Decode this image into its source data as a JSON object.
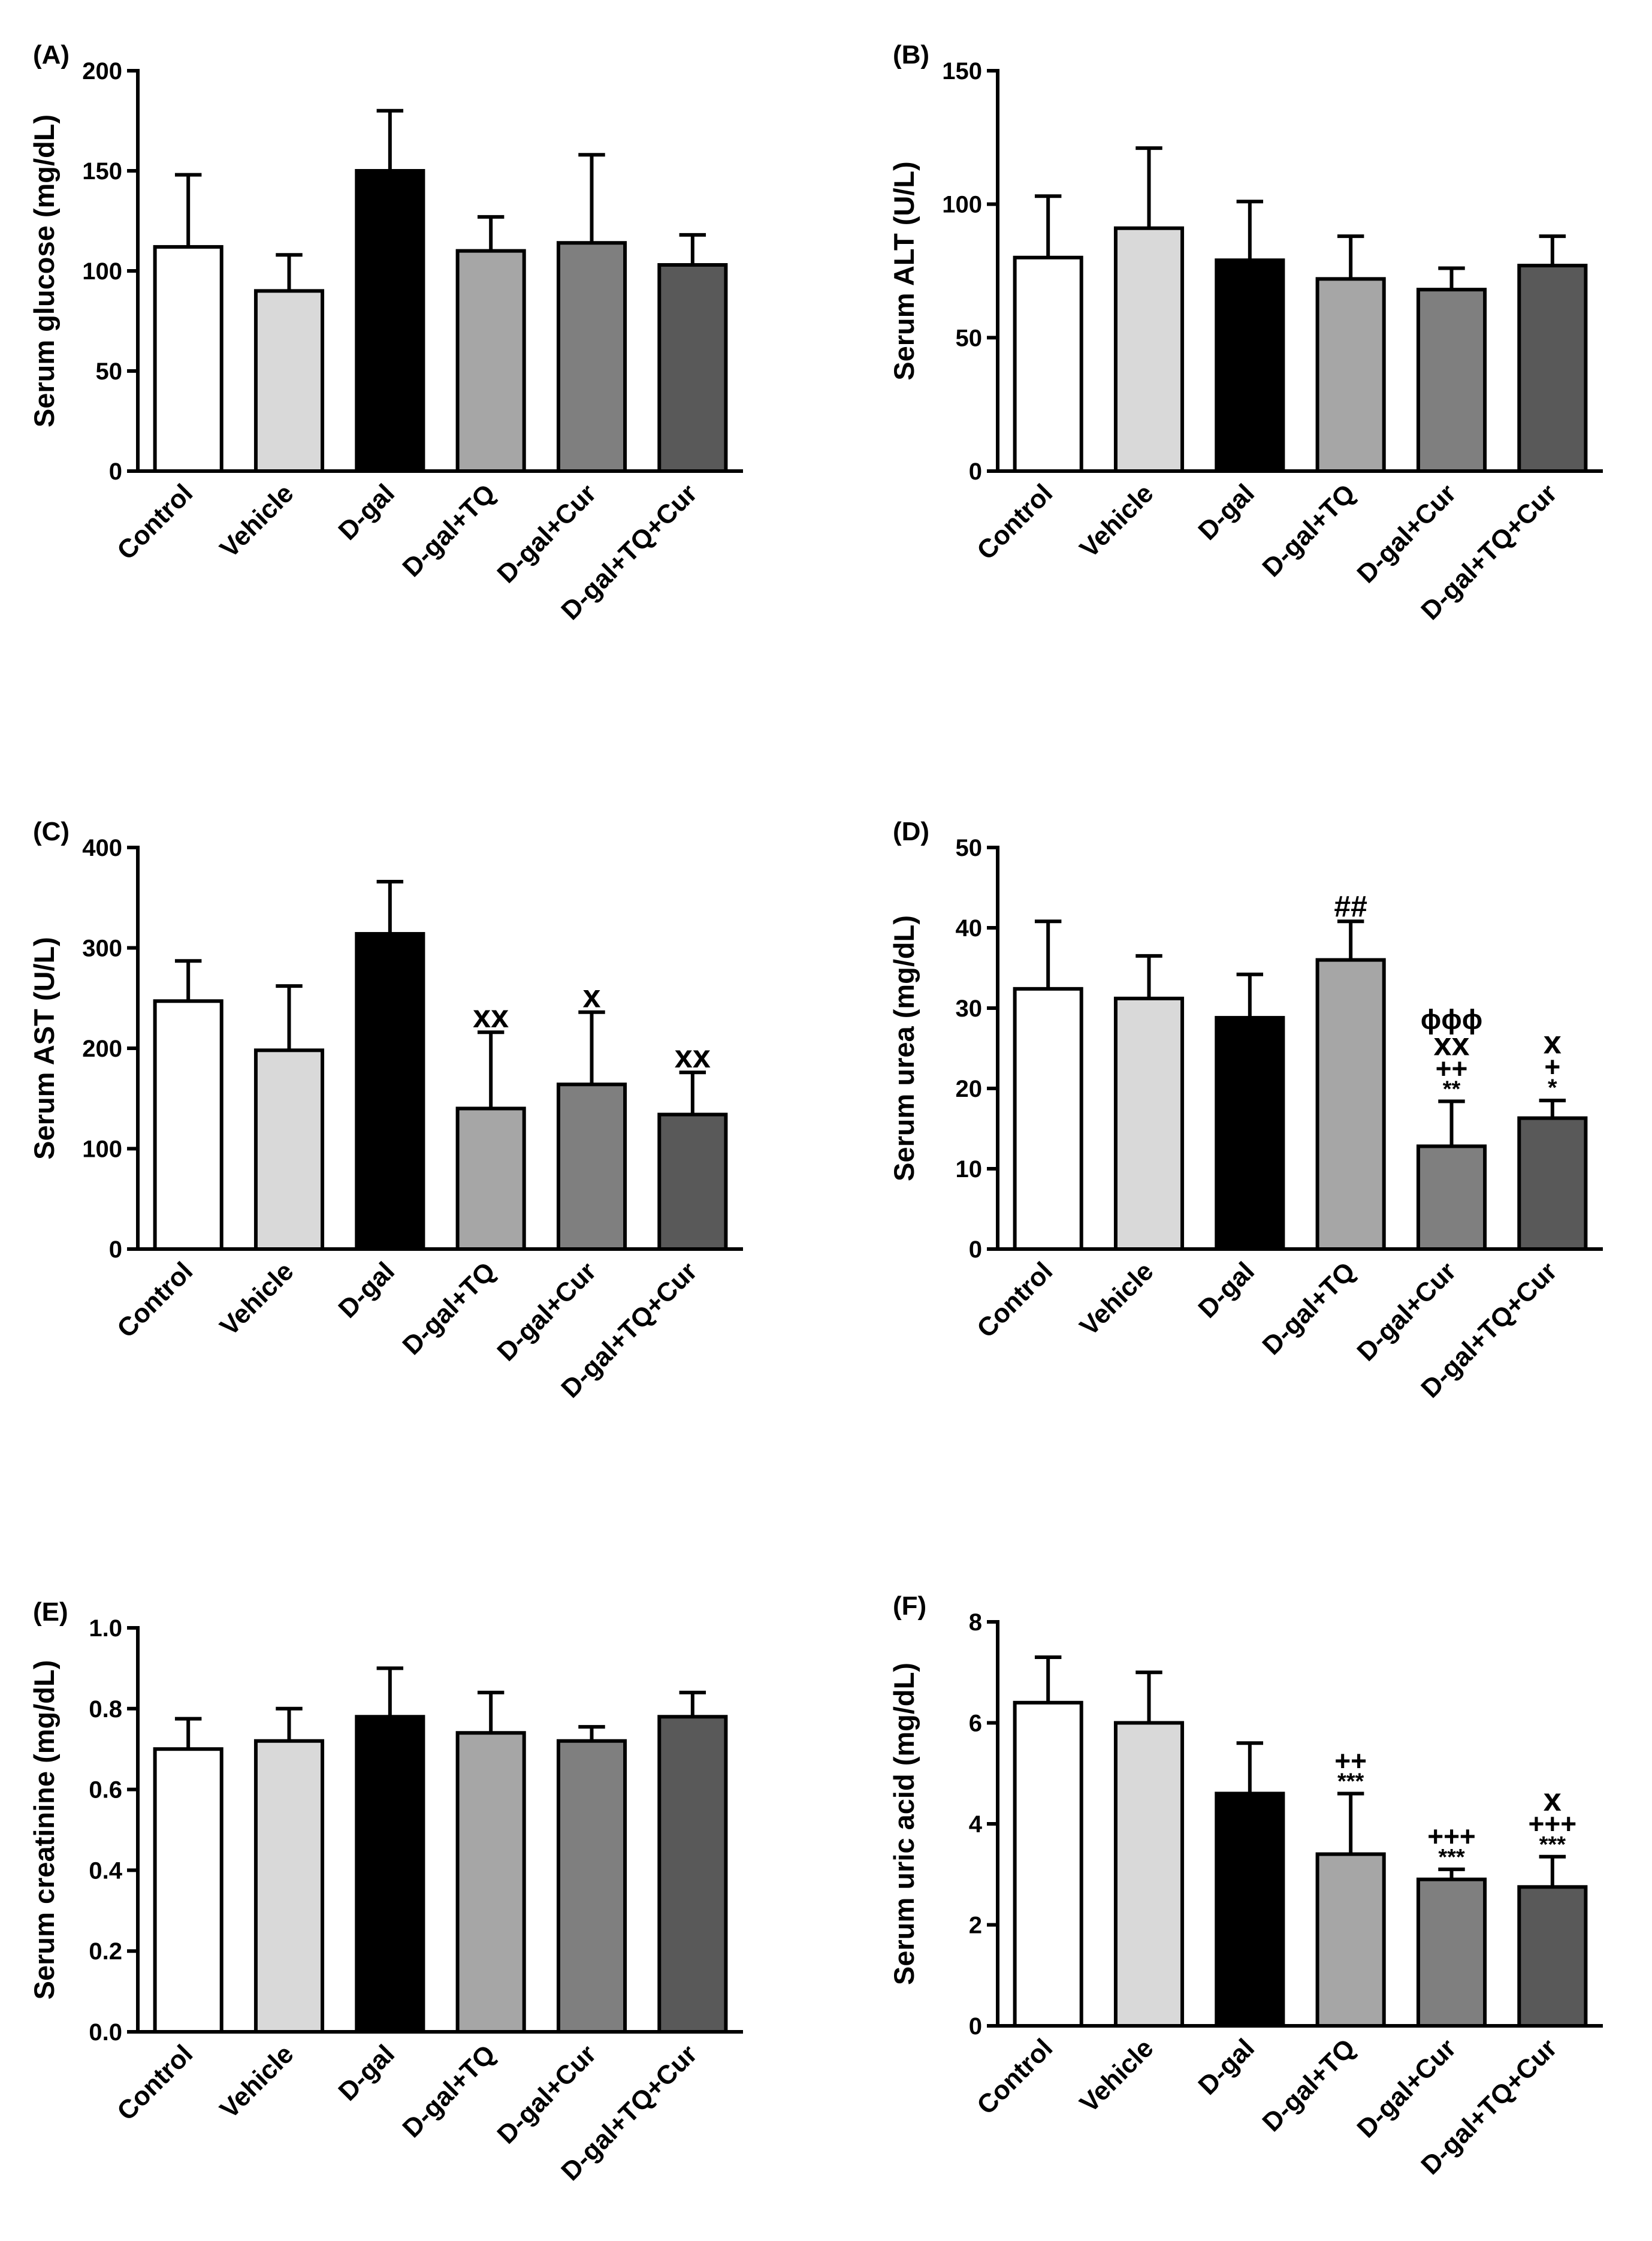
{
  "chart_data": [
    {
      "panel": "(A)",
      "type": "bar",
      "ylabel": "Serum glucose (mg/dL)",
      "ylim": [
        0,
        200
      ],
      "yticks": [
        0,
        50,
        100,
        150,
        200
      ],
      "ytick_labels": [
        "0",
        "50",
        "100",
        "150",
        "200"
      ],
      "categories": [
        "Control",
        "Vehicle",
        "D-gal",
        "D-gal+TQ",
        "D-gal+Cur",
        "D-gal+TQ+Cur"
      ],
      "values": [
        112,
        90,
        150,
        110,
        114,
        103
      ],
      "errors": [
        36,
        18,
        30,
        17,
        44,
        15
      ],
      "annotations": [
        [],
        [],
        [],
        [],
        [],
        []
      ]
    },
    {
      "panel": "(B)",
      "type": "bar",
      "ylabel": "Serum ALT (U/L)",
      "ylim": [
        0,
        150
      ],
      "yticks": [
        0,
        50,
        100,
        150
      ],
      "ytick_labels": [
        "0",
        "50",
        "100",
        "150"
      ],
      "categories": [
        "Control",
        "Vehicle",
        "D-gal",
        "D-gal+TQ",
        "D-gal+Cur",
        "D-gal+TQ+Cur"
      ],
      "values": [
        80,
        91,
        79,
        72,
        68,
        77
      ],
      "errors": [
        23,
        30,
        22,
        16,
        8,
        11
      ],
      "annotations": [
        [],
        [],
        [],
        [],
        [],
        []
      ]
    },
    {
      "panel": "(C)",
      "type": "bar",
      "ylabel": "Serum AST (U/L)",
      "ylim": [
        0,
        400
      ],
      "yticks": [
        0,
        100,
        200,
        300,
        400
      ],
      "ytick_labels": [
        "0",
        "100",
        "200",
        "300",
        "400"
      ],
      "categories": [
        "Control",
        "Vehicle",
        "D-gal",
        "D-gal+TQ",
        "D-gal+Cur",
        "D-gal+TQ+Cur"
      ],
      "values": [
        247,
        198,
        314,
        140,
        164,
        134
      ],
      "errors": [
        40,
        64,
        52,
        76,
        72,
        42
      ],
      "annotations": [
        [],
        [],
        [],
        [
          "xx"
        ],
        [
          "x"
        ],
        [
          "xx"
        ]
      ]
    },
    {
      "panel": "(D)",
      "type": "bar",
      "ylabel": "Serum urea (mg/dL)",
      "ylim": [
        0,
        50
      ],
      "yticks": [
        0,
        10,
        20,
        30,
        40,
        50
      ],
      "ytick_labels": [
        "0",
        "10",
        "20",
        "30",
        "40",
        "50"
      ],
      "categories": [
        "Control",
        "Vehicle",
        "D-gal",
        "D-gal+TQ",
        "D-gal+Cur",
        "D-gal+TQ+Cur"
      ],
      "values": [
        32.4,
        31.2,
        28.8,
        36,
        12.8,
        16.3
      ],
      "errors": [
        8.4,
        5.3,
        5.4,
        4.8,
        5.6,
        2.2
      ],
      "annotations": [
        [],
        [],
        [],
        [
          "##"
        ],
        [
          "**",
          "++",
          "xx",
          "ϕϕϕ"
        ],
        [
          "*",
          "+",
          "x"
        ]
      ]
    },
    {
      "panel": "(E)",
      "type": "bar",
      "ylabel": "Serum creatinine (mg/dL)",
      "ylim": [
        0,
        1
      ],
      "yticks": [
        0,
        0.2,
        0.4,
        0.6,
        0.8,
        1.0
      ],
      "ytick_labels": [
        "0.0",
        "0.2",
        "0.4",
        "0.6",
        "0.8",
        "1.0"
      ],
      "categories": [
        "Control",
        "Vehicle",
        "D-gal",
        "D-gal+TQ",
        "D-gal+Cur",
        "D-gal+TQ+Cur"
      ],
      "values": [
        0.7,
        0.72,
        0.78,
        0.74,
        0.72,
        0.78
      ],
      "errors": [
        0.075,
        0.08,
        0.12,
        0.1,
        0.035,
        0.06
      ],
      "annotations": [
        [],
        [],
        [],
        [],
        [],
        []
      ]
    },
    {
      "panel": "(F)",
      "type": "bar",
      "ylabel": "Serum uric acid (mg/dL)",
      "ylim": [
        0,
        8
      ],
      "yticks": [
        0,
        2,
        4,
        6,
        8
      ],
      "ytick_labels": [
        "0",
        "2",
        "4",
        "6",
        "8"
      ],
      "categories": [
        "Control",
        "Vehicle",
        "D-gal",
        "D-gal+TQ",
        "D-gal+Cur",
        "D-gal+TQ+Cur"
      ],
      "values": [
        6.4,
        6.0,
        4.6,
        3.4,
        2.9,
        2.75
      ],
      "errors": [
        0.9,
        1.0,
        1.0,
        1.2,
        0.2,
        0.6
      ],
      "annotations": [
        [],
        [],
        [],
        [
          "***",
          "++"
        ],
        [
          "***",
          "+++"
        ],
        [
          "***",
          "+++",
          "x"
        ]
      ]
    }
  ],
  "style": {
    "bar_fills": [
      "#ffffff",
      "#d9d9d9",
      "#000000",
      "#a6a6a6",
      "#7f7f7f",
      "#595959"
    ],
    "axis_color": "#000000"
  }
}
